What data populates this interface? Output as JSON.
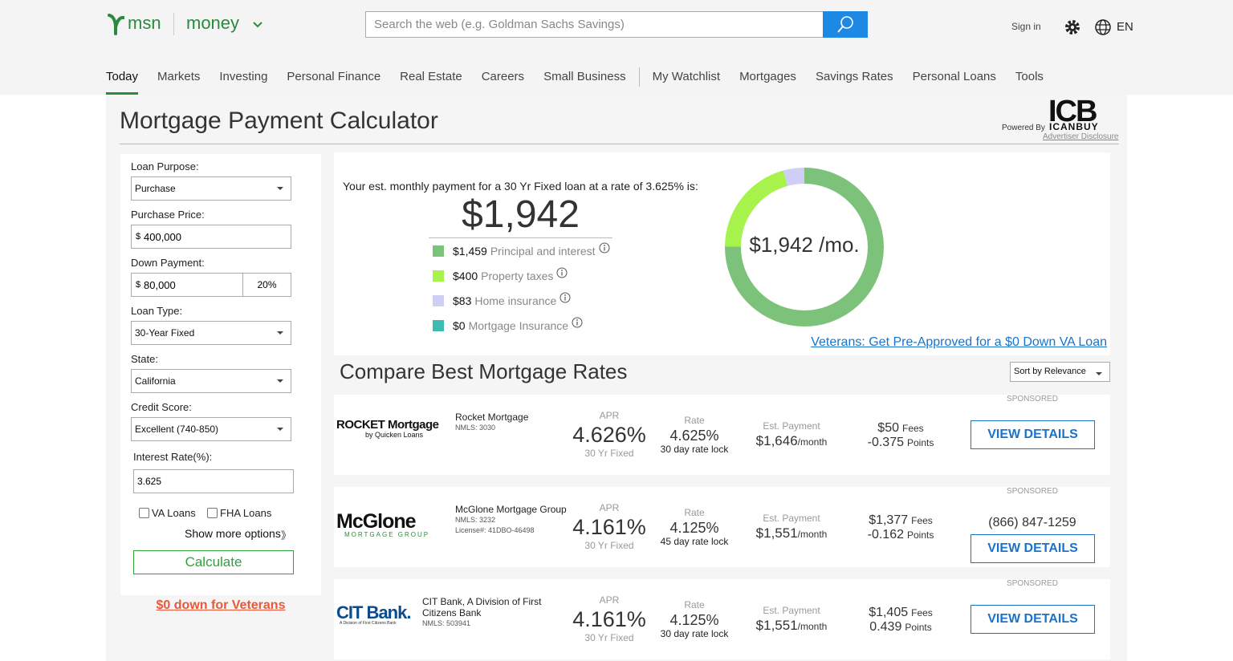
{
  "header": {
    "logo": "msn",
    "section": "money",
    "search_placeholder": "Search the web (e.g. Goldman Sachs Savings)",
    "sign_in": "Sign in",
    "language": "EN"
  },
  "nav": [
    "Today",
    "Markets",
    "Investing",
    "Personal Finance",
    "Real Estate",
    "Careers",
    "Small Business",
    "My Watchlist",
    "Mortgages",
    "Savings Rates",
    "Personal Loans",
    "Tools"
  ],
  "calculator": {
    "title": "Mortgage Payment Calculator",
    "powered_by": "Powered By",
    "brand": "ICB",
    "brand_sub": "ICANBUY",
    "disclosure": "Advertiser Disclosure"
  },
  "form": {
    "loan_purpose": {
      "label": "Loan Purpose:",
      "value": "Purchase"
    },
    "purchase_price": {
      "label": "Purchase Price:",
      "currency": "$",
      "value": "400,000"
    },
    "down_payment": {
      "label": "Down Payment:",
      "currency": "$",
      "value": "80,000",
      "percent": "20%"
    },
    "loan_type": {
      "label": "Loan Type:",
      "value": "30-Year Fixed"
    },
    "state": {
      "label": "State:",
      "value": "California"
    },
    "credit_score": {
      "label": "Credit Score:",
      "value": "Excellent (740-850)"
    },
    "interest_rate": {
      "label": "Interest Rate(%):",
      "value": "3.625"
    },
    "va_loans": "VA Loans",
    "fha_loans": "FHA Loans",
    "more_options": "Show more options",
    "more_icon": "》",
    "calculate": "Calculate",
    "veterans": "$0 down for Veterans"
  },
  "summary": {
    "intro": "Your est. monthly payment for a 30 Yr Fixed loan at a rate of 3.625% is:",
    "total": "$1,942",
    "center": "$1,942 /mo.",
    "breakdown": [
      {
        "amount": "$1,459",
        "value": 1459,
        "label": "Principal and interest",
        "color": "#7dc27a"
      },
      {
        "amount": "$400",
        "value": 400,
        "label": "Property taxes",
        "color": "#a8f24c"
      },
      {
        "amount": "$83",
        "value": 83,
        "label": "Home insurance",
        "color": "#cfcff5"
      },
      {
        "amount": "$0",
        "value": 0,
        "label": "Mortgage Insurance",
        "color": "#3dbdb2"
      }
    ],
    "va_link": "Veterans: Get Pre-Approved for a $0 Down VA Loan"
  },
  "compare": {
    "title": "Compare Best Mortgage Rates",
    "sort": "Sort by Relevance",
    "lenders": [
      {
        "sponsored": "SPONSORED",
        "logo": "ROCKET Mortgage",
        "logo_sub": "by Quicken Loans",
        "name": "Rocket Mortgage",
        "nmls": "NMLS: 3030",
        "apr_label": "APR",
        "apr": "4.626%",
        "term": "30 Yr Fixed",
        "rate_label": "Rate",
        "rate": "4.625%",
        "lock": "30 day rate lock",
        "payment_label": "Est. Payment",
        "payment": "$1,646",
        "per": "/month",
        "fees": "$50",
        "fees_label": "Fees",
        "points": "-0.375",
        "points_label": "Points",
        "button": "VIEW DETAILS"
      },
      {
        "sponsored": "SPONSORED",
        "logo": "McGlone",
        "logo_sub": "MORTGAGE GROUP",
        "name": "McGlone Mortgage Group",
        "nmls": "NMLS: 3232",
        "license": "License#: 41DBO-46498",
        "apr_label": "APR",
        "apr": "4.161%",
        "term": "30 Yr Fixed",
        "rate_label": "Rate",
        "rate": "4.125%",
        "lock": "45 day rate lock",
        "payment_label": "Est. Payment",
        "payment": "$1,551",
        "per": "/month",
        "fees": "$1,377",
        "fees_label": "Fees",
        "points": "-0.162",
        "points_label": "Points",
        "phone": "(866) 847-1259",
        "button": "VIEW DETAILS"
      },
      {
        "sponsored": "SPONSORED",
        "logo": "CIT Bank.",
        "logo_sub": "A Division of First Citizens Bank",
        "name": "CIT Bank, A Division of First Citizens Bank",
        "nmls": "NMLS: 503941",
        "apr_label": "APR",
        "apr": "4.161%",
        "term": "30 Yr Fixed",
        "rate_label": "Rate",
        "rate": "4.125%",
        "lock": "30 day rate lock",
        "payment_label": "Est. Payment",
        "payment": "$1,551",
        "per": "/month",
        "fees": "$1,405",
        "fees_label": "Fees",
        "points": "0.439",
        "points_label": "Points",
        "button": "VIEW DETAILS"
      }
    ]
  }
}
